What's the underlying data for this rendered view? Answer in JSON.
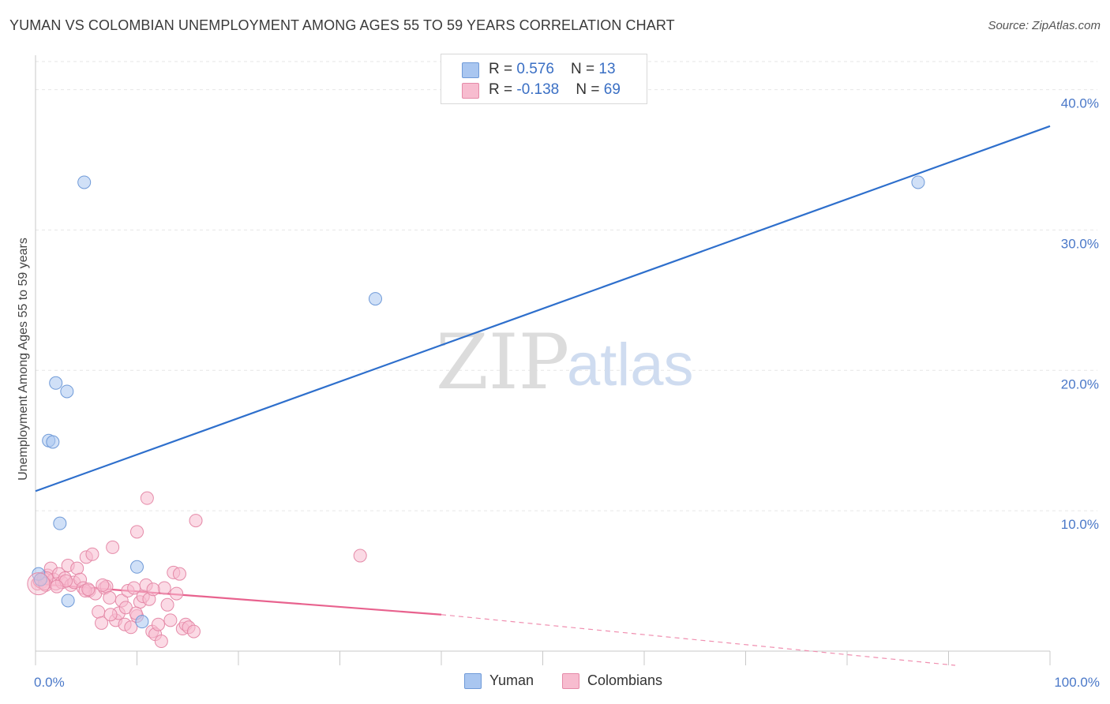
{
  "title": "YUMAN VS COLOMBIAN UNEMPLOYMENT AMONG AGES 55 TO 59 YEARS CORRELATION CHART",
  "source": "Source: ZipAtlas.com",
  "watermark": {
    "zip": "ZIP",
    "atlas": "atlas"
  },
  "legend_stats": [
    {
      "r_label": "R = ",
      "r_value": "0.576",
      "n_label": "N = ",
      "n_value": "13",
      "color": "#a9c6f0",
      "border": "#6f9ad8"
    },
    {
      "r_label": "R = ",
      "r_value": "-0.138",
      "n_label": "N = ",
      "n_value": "69",
      "color": "#f7bccf",
      "border": "#e58aa8"
    }
  ],
  "bottom_legend": [
    {
      "label": "Yuman",
      "color": "#a9c6f0",
      "border": "#6f9ad8"
    },
    {
      "label": "Colombians",
      "color": "#f7bccf",
      "border": "#e58aa8"
    }
  ],
  "chart_data": {
    "type": "scatter",
    "title": "YUMAN VS COLOMBIAN UNEMPLOYMENT AMONG AGES 55 TO 59 YEARS CORRELATION CHART",
    "xlabel": "",
    "ylabel": "Unemployment Among Ages 55 to 59 years",
    "xlim": [
      0,
      100
    ],
    "ylim": [
      0,
      42
    ],
    "x_tick_labels": [
      "0.0%",
      "100.0%"
    ],
    "y_ticks": [
      10,
      20,
      30,
      40
    ],
    "y_tick_labels": [
      "10.0%",
      "20.0%",
      "30.0%",
      "40.0%"
    ],
    "grid": true,
    "series": [
      {
        "name": "Yuman",
        "color": "#a9c6f0",
        "stroke": "#6f9ad8",
        "points": [
          [
            0.3,
            5.5
          ],
          [
            0.5,
            5.1
          ],
          [
            4.8,
            33.4
          ],
          [
            33.5,
            25.1
          ],
          [
            2.0,
            19.1
          ],
          [
            3.1,
            18.5
          ],
          [
            1.3,
            15.0
          ],
          [
            1.7,
            14.9
          ],
          [
            2.4,
            9.1
          ],
          [
            10.0,
            6.0
          ],
          [
            3.2,
            3.6
          ],
          [
            10.5,
            2.1
          ],
          [
            87.0,
            33.4
          ]
        ],
        "trend": {
          "x": [
            0,
            100
          ],
          "y": [
            11.4,
            37.4
          ],
          "color": "#2e6fcc"
        }
      },
      {
        "name": "Colombians",
        "color": "#f7bccf",
        "stroke": "#e58aa8",
        "points": [
          [
            0.2,
            4.8
          ],
          [
            0.4,
            5.0
          ],
          [
            0.6,
            4.9
          ],
          [
            0.8,
            5.2
          ],
          [
            1.0,
            4.7
          ],
          [
            1.2,
            5.4
          ],
          [
            1.5,
            5.9
          ],
          [
            1.8,
            5.1
          ],
          [
            2.0,
            4.8
          ],
          [
            2.3,
            5.5
          ],
          [
            2.6,
            4.9
          ],
          [
            2.9,
            5.2
          ],
          [
            3.2,
            6.1
          ],
          [
            3.5,
            4.7
          ],
          [
            3.8,
            4.9
          ],
          [
            4.1,
            5.9
          ],
          [
            4.4,
            5.1
          ],
          [
            4.7,
            4.5
          ],
          [
            5.0,
            6.7
          ],
          [
            5.3,
            4.3
          ],
          [
            5.6,
            6.9
          ],
          [
            5.9,
            4.1
          ],
          [
            6.2,
            2.8
          ],
          [
            6.5,
            2.0
          ],
          [
            6.8,
            4.5
          ],
          [
            7.0,
            4.6
          ],
          [
            7.3,
            3.8
          ],
          [
            7.6,
            7.4
          ],
          [
            7.9,
            2.2
          ],
          [
            8.2,
            2.7
          ],
          [
            8.5,
            3.6
          ],
          [
            8.8,
            1.9
          ],
          [
            9.1,
            4.3
          ],
          [
            9.4,
            1.7
          ],
          [
            9.7,
            4.5
          ],
          [
            10.0,
            2.5
          ],
          [
            10.3,
            3.5
          ],
          [
            10.0,
            8.5
          ],
          [
            10.6,
            3.9
          ],
          [
            10.9,
            4.7
          ],
          [
            11.2,
            3.7
          ],
          [
            11.0,
            10.9
          ],
          [
            11.5,
            1.4
          ],
          [
            11.8,
            1.2
          ],
          [
            12.1,
            1.9
          ],
          [
            12.4,
            0.7
          ],
          [
            12.7,
            4.5
          ],
          [
            13.0,
            3.3
          ],
          [
            13.3,
            2.2
          ],
          [
            13.6,
            5.6
          ],
          [
            13.9,
            4.1
          ],
          [
            14.2,
            5.5
          ],
          [
            14.5,
            1.6
          ],
          [
            14.8,
            1.9
          ],
          [
            15.1,
            1.7
          ],
          [
            15.6,
            1.4
          ],
          [
            15.8,
            9.3
          ],
          [
            32.0,
            6.8
          ],
          [
            3.0,
            5.0
          ],
          [
            2.1,
            4.6
          ],
          [
            4.9,
            4.3
          ],
          [
            6.6,
            4.7
          ],
          [
            8.9,
            3.1
          ],
          [
            1.1,
            5.2
          ],
          [
            9.9,
            2.7
          ],
          [
            7.4,
            2.6
          ],
          [
            5.2,
            4.4
          ],
          [
            0.9,
            4.8
          ],
          [
            11.6,
            4.4
          ]
        ],
        "trend": {
          "x": [
            0,
            40
          ],
          "y": [
            4.8,
            2.6
          ],
          "color": "#e8628e"
        },
        "trend_extension": {
          "x": [
            40,
            100
          ],
          "y": [
            2.6,
            -0.7
          ],
          "color": "#f08fb0"
        }
      }
    ]
  }
}
